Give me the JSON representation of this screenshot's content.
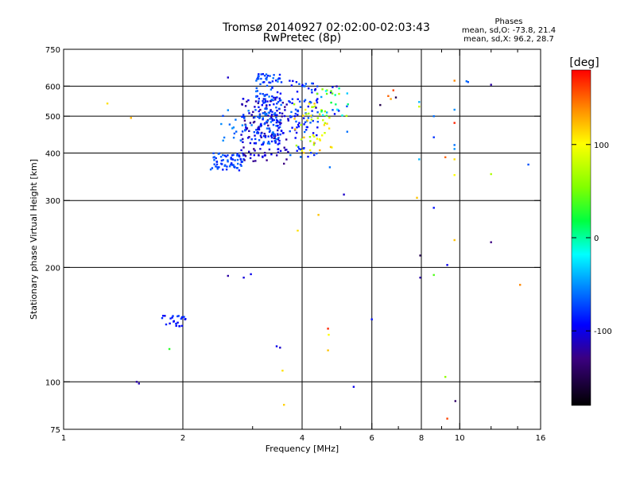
{
  "header": {
    "title_line1": "Tromsø 20140927 02:02:00-02:03:43",
    "title_line2": "RwPretec (8p)",
    "stats_title": "Phases",
    "stats_o": "mean, sd,O: -73.8, 21.4",
    "stats_x": "mean, sd,X:  96.2, 28.7"
  },
  "colorbar": {
    "unit_label": "[deg]",
    "range": [
      -180,
      180
    ],
    "ticks": [
      {
        "value": 100,
        "label": "100"
      },
      {
        "value": 0,
        "label": "0"
      },
      {
        "value": -100,
        "label": "-100"
      }
    ]
  },
  "chart_data": {
    "type": "scatter",
    "xlabel": "Frequency [MHz]",
    "ylabel": "Stationary phase Virtual Height [km]",
    "x_scale": "log",
    "y_scale": "log",
    "xlim": [
      1,
      16
    ],
    "ylim": [
      75,
      750
    ],
    "x_ticks": [
      {
        "value": 1,
        "label": "1"
      },
      {
        "value": 2,
        "label": "2"
      },
      {
        "value": 4,
        "label": "4"
      },
      {
        "value": 6,
        "label": "6"
      },
      {
        "value": 8,
        "label": "8"
      },
      {
        "value": 10,
        "label": "10"
      },
      {
        "value": 16,
        "label": "16"
      }
    ],
    "y_ticks": [
      {
        "value": 75,
        "label": "75"
      },
      {
        "value": 100,
        "label": "100"
      },
      {
        "value": 200,
        "label": "200"
      },
      {
        "value": 300,
        "label": "300"
      },
      {
        "value": 400,
        "label": "400"
      },
      {
        "value": 500,
        "label": "500"
      },
      {
        "value": 600,
        "label": "600"
      },
      {
        "value": 750,
        "label": "750"
      }
    ],
    "grid_x": [
      2,
      4,
      6,
      8,
      10
    ],
    "grid_y": [
      100,
      200,
      300,
      400,
      500,
      600
    ],
    "grid": true,
    "minor_x_ticks": [
      3,
      5,
      7,
      9,
      12,
      14
    ],
    "clusters": [
      {
        "x": [
          2.35,
          2.85
        ],
        "y": [
          360,
          400
        ],
        "n": 70,
        "phase": [
          -90,
          -60
        ]
      },
      {
        "x": [
          2.8,
          3.7
        ],
        "y": [
          380,
          560
        ],
        "n": 140,
        "phase": [
          -130,
          -95
        ]
      },
      {
        "x": [
          3.05,
          3.55
        ],
        "y": [
          420,
          650
        ],
        "n": 160,
        "phase": [
          -95,
          -55
        ]
      },
      {
        "x": [
          2.5,
          3.1
        ],
        "y": [
          430,
          520
        ],
        "n": 30,
        "phase": [
          -80,
          -50
        ]
      },
      {
        "x": [
          3.7,
          4.4
        ],
        "y": [
          390,
          620
        ],
        "n": 90,
        "phase": [
          -100,
          -60
        ]
      },
      {
        "x": [
          3.8,
          4.8
        ],
        "y": [
          400,
          540
        ],
        "n": 45,
        "phase": [
          60,
          130
        ]
      },
      {
        "x": [
          4.3,
          5.3
        ],
        "y": [
          500,
          600
        ],
        "n": 35,
        "phase": [
          -120,
          80
        ]
      },
      {
        "x": [
          1.75,
          2.05
        ],
        "y": [
          140,
          150
        ],
        "n": 25,
        "phase": [
          -100,
          -75
        ]
      }
    ],
    "points": [
      {
        "x": 1.29,
        "y": 540,
        "phase": 110
      },
      {
        "x": 1.48,
        "y": 495,
        "phase": 125
      },
      {
        "x": 1.53,
        "y": 100,
        "phase": -120
      },
      {
        "x": 1.55,
        "y": 99,
        "phase": -115
      },
      {
        "x": 1.85,
        "y": 122,
        "phase": 30
      },
      {
        "x": 2.6,
        "y": 632,
        "phase": -110
      },
      {
        "x": 2.6,
        "y": 190,
        "phase": -120
      },
      {
        "x": 2.85,
        "y": 188,
        "phase": -105
      },
      {
        "x": 2.97,
        "y": 192,
        "phase": -100
      },
      {
        "x": 3.45,
        "y": 124,
        "phase": -100
      },
      {
        "x": 3.52,
        "y": 123,
        "phase": -110
      },
      {
        "x": 3.57,
        "y": 107,
        "phase": 110
      },
      {
        "x": 3.6,
        "y": 87,
        "phase": 115
      },
      {
        "x": 3.6,
        "y": 375,
        "phase": -130
      },
      {
        "x": 3.9,
        "y": 250,
        "phase": 110
      },
      {
        "x": 4.4,
        "y": 275,
        "phase": 120
      },
      {
        "x": 4.7,
        "y": 367,
        "phase": -60
      },
      {
        "x": 4.65,
        "y": 138,
        "phase": 170
      },
      {
        "x": 4.67,
        "y": 133,
        "phase": 100
      },
      {
        "x": 4.65,
        "y": 121,
        "phase": 120
      },
      {
        "x": 5.1,
        "y": 311,
        "phase": -110
      },
      {
        "x": 5.2,
        "y": 455,
        "phase": -60
      },
      {
        "x": 5.4,
        "y": 97,
        "phase": -100
      },
      {
        "x": 6.0,
        "y": 146,
        "phase": -90
      },
      {
        "x": 6.3,
        "y": 535,
        "phase": -150
      },
      {
        "x": 6.6,
        "y": 565,
        "phase": 150
      },
      {
        "x": 6.7,
        "y": 555,
        "phase": 130
      },
      {
        "x": 6.8,
        "y": 585,
        "phase": 160
      },
      {
        "x": 6.9,
        "y": 560,
        "phase": -150
      },
      {
        "x": 7.9,
        "y": 545,
        "phase": -40
      },
      {
        "x": 7.9,
        "y": 530,
        "phase": 80
      },
      {
        "x": 7.8,
        "y": 305,
        "phase": 120
      },
      {
        "x": 7.9,
        "y": 385,
        "phase": -40
      },
      {
        "x": 7.95,
        "y": 215,
        "phase": -150
      },
      {
        "x": 7.95,
        "y": 188,
        "phase": -120
      },
      {
        "x": 8.6,
        "y": 500,
        "phase": -60
      },
      {
        "x": 8.6,
        "y": 440,
        "phase": -80
      },
      {
        "x": 8.6,
        "y": 287,
        "phase": -90
      },
      {
        "x": 8.6,
        "y": 191,
        "phase": 40
      },
      {
        "x": 9.2,
        "y": 390,
        "phase": 150
      },
      {
        "x": 9.2,
        "y": 103,
        "phase": 60
      },
      {
        "x": 9.3,
        "y": 80,
        "phase": 160
      },
      {
        "x": 9.3,
        "y": 203,
        "phase": -100
      },
      {
        "x": 9.7,
        "y": 620,
        "phase": 140
      },
      {
        "x": 9.7,
        "y": 520,
        "phase": -50
      },
      {
        "x": 9.7,
        "y": 480,
        "phase": 170
      },
      {
        "x": 9.7,
        "y": 420,
        "phase": -60
      },
      {
        "x": 9.7,
        "y": 410,
        "phase": -50
      },
      {
        "x": 9.7,
        "y": 385,
        "phase": 110
      },
      {
        "x": 9.7,
        "y": 350,
        "phase": 100
      },
      {
        "x": 9.7,
        "y": 236,
        "phase": 120
      },
      {
        "x": 9.75,
        "y": 89,
        "phase": -140
      },
      {
        "x": 10.4,
        "y": 618,
        "phase": -60
      },
      {
        "x": 10.5,
        "y": 615,
        "phase": -70
      },
      {
        "x": 12.0,
        "y": 605,
        "phase": -120
      },
      {
        "x": 12.0,
        "y": 352,
        "phase": 70
      },
      {
        "x": 12.0,
        "y": 233,
        "phase": -130
      },
      {
        "x": 14.2,
        "y": 180,
        "phase": 140
      },
      {
        "x": 14.9,
        "y": 373,
        "phase": -70
      }
    ]
  }
}
